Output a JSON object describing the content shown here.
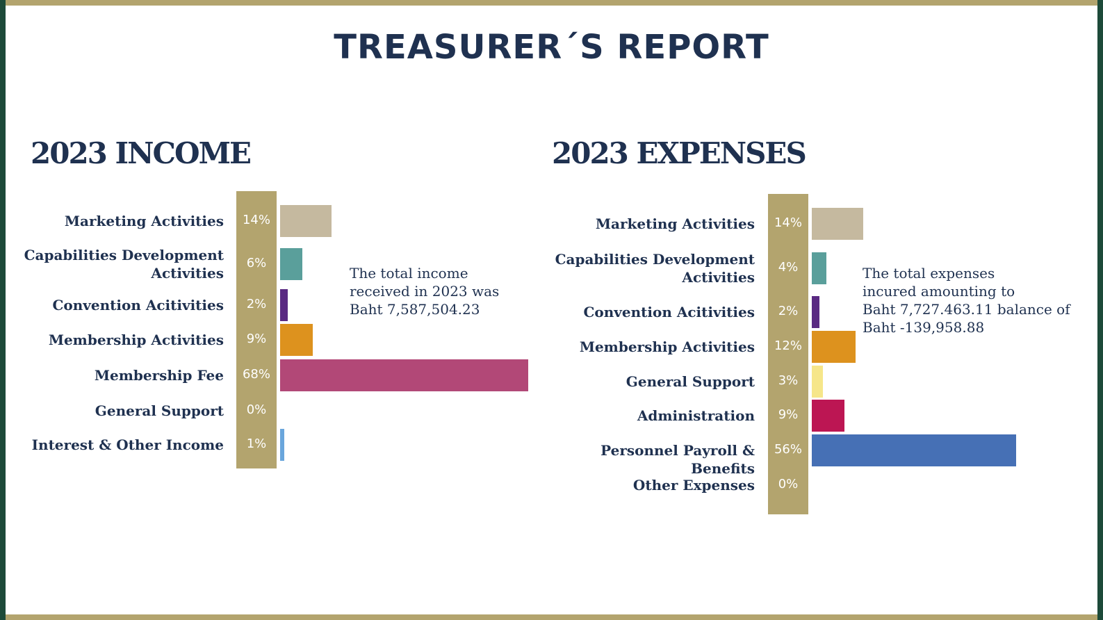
{
  "page": {
    "title": "TREASURER´S REPORT"
  },
  "colors": {
    "frame_gold": "#b3a46e",
    "frame_green": "#1d4a39",
    "text_navy": "#1f3150"
  },
  "income": {
    "heading": "2023 INCOME",
    "note": [
      "The total income",
      "received in 2023 was",
      "Baht 7,587,504.23"
    ]
  },
  "expenses": {
    "heading": "2023 EXPENSES",
    "note": [
      "The total expenses",
      "incured amounting to",
      "Baht 7,727.463.11 balance of",
      "Baht -139,958.88"
    ]
  },
  "chart_data": [
    {
      "type": "bar",
      "orientation": "horizontal",
      "title": "2023 INCOME",
      "unit": "%",
      "categories": [
        "Marketing Activities",
        "Capabilities Development Activities",
        "Convention Acitivities",
        "Membership Activities",
        "Membership Fee",
        "General Support",
        "Interest & Other Income"
      ],
      "values": [
        14,
        6,
        2,
        9,
        68,
        0,
        1
      ],
      "value_labels": [
        "14%",
        "6%",
        "2%",
        "9%",
        "68%",
        "0%",
        "1%"
      ],
      "colors": [
        "#c5b99f",
        "#5a9f9b",
        "#5a2a82",
        "#dd921e",
        "#b24877",
        "#b24877",
        "#6aa6dc"
      ],
      "xlim": [
        0,
        68
      ],
      "grid": false,
      "legend": "none"
    },
    {
      "type": "bar",
      "orientation": "horizontal",
      "title": "2023 EXPENSES",
      "unit": "%",
      "categories": [
        "Marketing Activities",
        "Capabilities Development Activities",
        "Convention Acitivities",
        "Membership Activities",
        "General Support",
        "Administration",
        "Personnel Payroll & Benefits",
        "Other Expenses"
      ],
      "values": [
        14,
        4,
        2,
        12,
        3,
        9,
        56,
        0
      ],
      "value_labels": [
        "14%",
        "4%",
        "2%",
        "12%",
        "3%",
        "9%",
        "56%",
        "0%"
      ],
      "colors": [
        "#c5b99f",
        "#5a9f9b",
        "#5a2a82",
        "#dd921e",
        "#f6e68a",
        "#bc1653",
        "#4670b5",
        "#4670b5"
      ],
      "xlim": [
        0,
        68
      ],
      "grid": false,
      "legend": "none"
    }
  ]
}
